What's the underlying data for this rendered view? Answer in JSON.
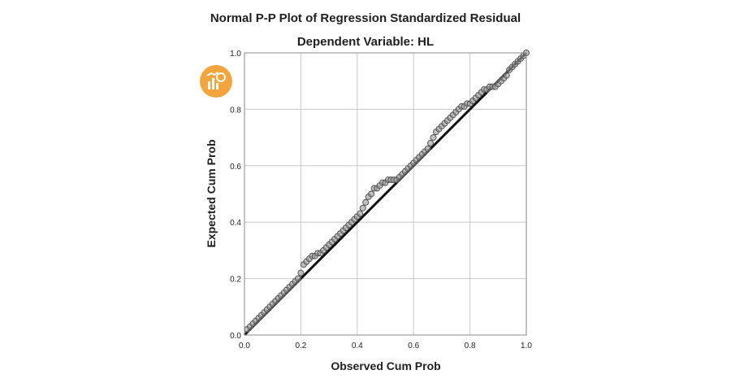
{
  "chart_data": {
    "type": "scatter",
    "title": "Normal P-P Plot of Regression Standardized Residual",
    "subtitle": "Dependent Variable: HL",
    "xlabel": "Observed Cum Prob",
    "ylabel": "Expected Cum Prob",
    "xlim": [
      0.0,
      1.0
    ],
    "ylim": [
      0.0,
      1.0
    ],
    "xticks": [
      "0.0",
      "0.2",
      "0.4",
      "0.6",
      "0.8",
      "1.0"
    ],
    "yticks": [
      "0.0",
      "0.2",
      "0.4",
      "0.6",
      "0.8",
      "1.0"
    ],
    "grid": true,
    "reference_line": [
      [
        0.0,
        0.0
      ],
      [
        1.0,
        1.0
      ]
    ],
    "points": [
      [
        0.01,
        0.02
      ],
      [
        0.02,
        0.03
      ],
      [
        0.03,
        0.04
      ],
      [
        0.04,
        0.05
      ],
      [
        0.05,
        0.06
      ],
      [
        0.06,
        0.07
      ],
      [
        0.07,
        0.08
      ],
      [
        0.08,
        0.09
      ],
      [
        0.09,
        0.1
      ],
      [
        0.1,
        0.11
      ],
      [
        0.11,
        0.12
      ],
      [
        0.12,
        0.13
      ],
      [
        0.13,
        0.14
      ],
      [
        0.14,
        0.15
      ],
      [
        0.15,
        0.16
      ],
      [
        0.16,
        0.17
      ],
      [
        0.17,
        0.18
      ],
      [
        0.18,
        0.19
      ],
      [
        0.19,
        0.2
      ],
      [
        0.2,
        0.22
      ],
      [
        0.21,
        0.25
      ],
      [
        0.22,
        0.26
      ],
      [
        0.23,
        0.27
      ],
      [
        0.24,
        0.28
      ],
      [
        0.25,
        0.28
      ],
      [
        0.26,
        0.29
      ],
      [
        0.27,
        0.29
      ],
      [
        0.28,
        0.3
      ],
      [
        0.29,
        0.31
      ],
      [
        0.3,
        0.32
      ],
      [
        0.31,
        0.33
      ],
      [
        0.32,
        0.34
      ],
      [
        0.33,
        0.35
      ],
      [
        0.34,
        0.36
      ],
      [
        0.35,
        0.37
      ],
      [
        0.36,
        0.38
      ],
      [
        0.37,
        0.39
      ],
      [
        0.38,
        0.4
      ],
      [
        0.39,
        0.41
      ],
      [
        0.4,
        0.42
      ],
      [
        0.41,
        0.43
      ],
      [
        0.42,
        0.45
      ],
      [
        0.43,
        0.47
      ],
      [
        0.44,
        0.49
      ],
      [
        0.45,
        0.5
      ],
      [
        0.46,
        0.52
      ],
      [
        0.47,
        0.52
      ],
      [
        0.48,
        0.53
      ],
      [
        0.49,
        0.54
      ],
      [
        0.5,
        0.54
      ],
      [
        0.51,
        0.55
      ],
      [
        0.52,
        0.55
      ],
      [
        0.53,
        0.55
      ],
      [
        0.54,
        0.55
      ],
      [
        0.55,
        0.56
      ],
      [
        0.56,
        0.57
      ],
      [
        0.57,
        0.58
      ],
      [
        0.58,
        0.59
      ],
      [
        0.59,
        0.6
      ],
      [
        0.6,
        0.61
      ],
      [
        0.61,
        0.62
      ],
      [
        0.62,
        0.63
      ],
      [
        0.63,
        0.64
      ],
      [
        0.64,
        0.65
      ],
      [
        0.65,
        0.66
      ],
      [
        0.66,
        0.68
      ],
      [
        0.67,
        0.7
      ],
      [
        0.68,
        0.72
      ],
      [
        0.69,
        0.73
      ],
      [
        0.7,
        0.74
      ],
      [
        0.71,
        0.75
      ],
      [
        0.72,
        0.76
      ],
      [
        0.73,
        0.77
      ],
      [
        0.74,
        0.78
      ],
      [
        0.75,
        0.79
      ],
      [
        0.76,
        0.8
      ],
      [
        0.77,
        0.81
      ],
      [
        0.78,
        0.81
      ],
      [
        0.79,
        0.82
      ],
      [
        0.8,
        0.82
      ],
      [
        0.81,
        0.83
      ],
      [
        0.82,
        0.84
      ],
      [
        0.83,
        0.85
      ],
      [
        0.84,
        0.86
      ],
      [
        0.85,
        0.87
      ],
      [
        0.86,
        0.87
      ],
      [
        0.87,
        0.88
      ],
      [
        0.88,
        0.88
      ],
      [
        0.89,
        0.88
      ],
      [
        0.9,
        0.89
      ],
      [
        0.91,
        0.9
      ],
      [
        0.92,
        0.91
      ],
      [
        0.93,
        0.92
      ],
      [
        0.94,
        0.94
      ],
      [
        0.95,
        0.95
      ],
      [
        0.96,
        0.96
      ],
      [
        0.97,
        0.97
      ],
      [
        0.98,
        0.98
      ],
      [
        0.99,
        0.99
      ],
      [
        1.0,
        1.0
      ]
    ]
  },
  "colors": {
    "grid": "#c8c8c8",
    "axis": "#888888",
    "points": "#555555",
    "point_fill": "#9a9a9a",
    "line": "#111111"
  },
  "icon": "chart-badge-icon"
}
